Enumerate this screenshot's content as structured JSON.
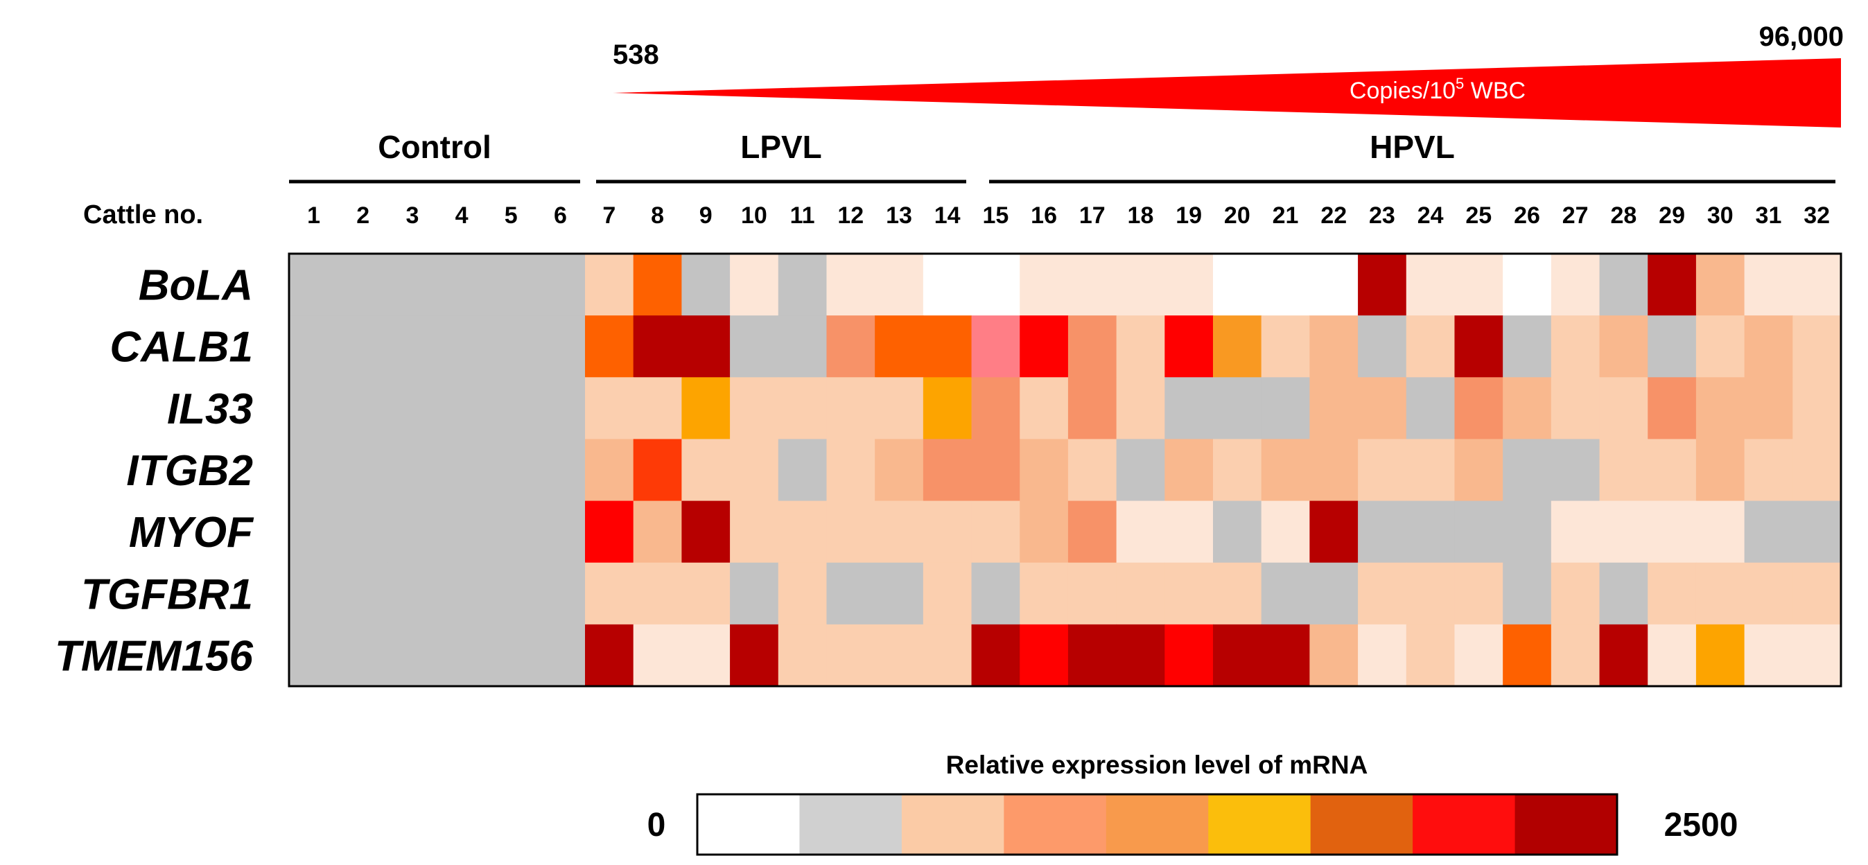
{
  "chart_data": {
    "type": "heatmap",
    "title": "",
    "row_header": "Cattle no.",
    "columns": [
      "1",
      "2",
      "3",
      "4",
      "5",
      "6",
      "7",
      "8",
      "9",
      "10",
      "11",
      "12",
      "13",
      "14",
      "15",
      "16",
      "17",
      "18",
      "19",
      "20",
      "21",
      "22",
      "23",
      "24",
      "25",
      "26",
      "27",
      "28",
      "29",
      "30",
      "31",
      "32"
    ],
    "groups": [
      {
        "label": "Control",
        "from": 1,
        "to": 6
      },
      {
        "label": "LPVL",
        "from": 7,
        "to": 14
      },
      {
        "label": "HPVL",
        "from": 15,
        "to": 32
      }
    ],
    "provirus_gradient": {
      "min_label": "538",
      "max_label": "96,000",
      "unit_prefix": "Copies/10",
      "unit_exponent": "5",
      "unit_suffix": " WBC"
    },
    "rows": [
      "BoLA",
      "CALB1",
      "IL33",
      "ITGB2",
      "MYOF",
      "TGFBR1",
      "TMEM156"
    ],
    "color_bins": [
      "#ffffff",
      "#d0d0d0",
      "#fbcba6",
      "#fd9a6a",
      "#f89a4c",
      "#fbbe0c",
      "#e1620f",
      "#ff0d0d",
      "#b10000"
    ],
    "cell_colors": {
      "white": "#ffffff",
      "na": "#c3c3c3",
      "lt": "#fde6d7",
      "p": "#fbcfaf",
      "pd": "#f9b88e",
      "s": "#f79268",
      "or": "#fe6100",
      "org": "#f99922",
      "amb": "#fda400",
      "ror": "#fe3a06",
      "pk": "#ff7e86",
      "red": "#ff0000",
      "dred": "#b70000"
    },
    "matrix": [
      [
        "na",
        "na",
        "na",
        "na",
        "na",
        "na",
        "p",
        "or",
        "na",
        "lt",
        "na",
        "lt",
        "lt",
        "white",
        "white",
        "lt",
        "lt",
        "lt",
        "lt",
        "white",
        "white",
        "white",
        "dred",
        "lt",
        "lt",
        "white",
        "lt",
        "na",
        "dred",
        "pd",
        "lt",
        "lt"
      ],
      [
        "na",
        "na",
        "na",
        "na",
        "na",
        "na",
        "or",
        "dred",
        "dred",
        "na",
        "na",
        "s",
        "or",
        "or",
        "pk",
        "red",
        "s",
        "p",
        "red",
        "org",
        "p",
        "pd",
        "na",
        "p",
        "dred",
        "na",
        "p",
        "pd",
        "na",
        "p",
        "pd",
        "p"
      ],
      [
        "na",
        "na",
        "na",
        "na",
        "na",
        "na",
        "p",
        "p",
        "amb",
        "p",
        "p",
        "p",
        "p",
        "amb",
        "s",
        "p",
        "s",
        "p",
        "na",
        "na",
        "na",
        "pd",
        "pd",
        "na",
        "s",
        "pd",
        "p",
        "p",
        "s",
        "pd",
        "pd",
        "p"
      ],
      [
        "na",
        "na",
        "na",
        "na",
        "na",
        "na",
        "pd",
        "ror",
        "p",
        "p",
        "na",
        "p",
        "pd",
        "s",
        "s",
        "pd",
        "p",
        "na",
        "pd",
        "p",
        "pd",
        "pd",
        "p",
        "p",
        "pd",
        "na",
        "na",
        "p",
        "p",
        "pd",
        "p",
        "p"
      ],
      [
        "na",
        "na",
        "na",
        "na",
        "na",
        "na",
        "red",
        "pd",
        "dred",
        "p",
        "p",
        "p",
        "p",
        "p",
        "p",
        "pd",
        "s",
        "lt",
        "lt",
        "na",
        "lt",
        "dred",
        "na",
        "na",
        "na",
        "na",
        "lt",
        "lt",
        "lt",
        "lt",
        "na",
        "na"
      ],
      [
        "na",
        "na",
        "na",
        "na",
        "na",
        "na",
        "p",
        "p",
        "p",
        "na",
        "p",
        "na",
        "na",
        "p",
        "na",
        "p",
        "p",
        "p",
        "p",
        "p",
        "na",
        "na",
        "p",
        "p",
        "p",
        "na",
        "p",
        "na",
        "p",
        "p",
        "p",
        "p"
      ],
      [
        "na",
        "na",
        "na",
        "na",
        "na",
        "na",
        "dred",
        "lt",
        "lt",
        "dred",
        "p",
        "p",
        "p",
        "p",
        "dred",
        "red",
        "dred",
        "dred",
        "red",
        "dred",
        "dred",
        "pd",
        "lt",
        "p",
        "lt",
        "or",
        "p",
        "dred",
        "lt",
        "amb",
        "lt",
        "lt"
      ]
    ],
    "legend": {
      "title": "Relative expression level of mRNA",
      "min_label": "0",
      "max_label": "2500"
    }
  }
}
